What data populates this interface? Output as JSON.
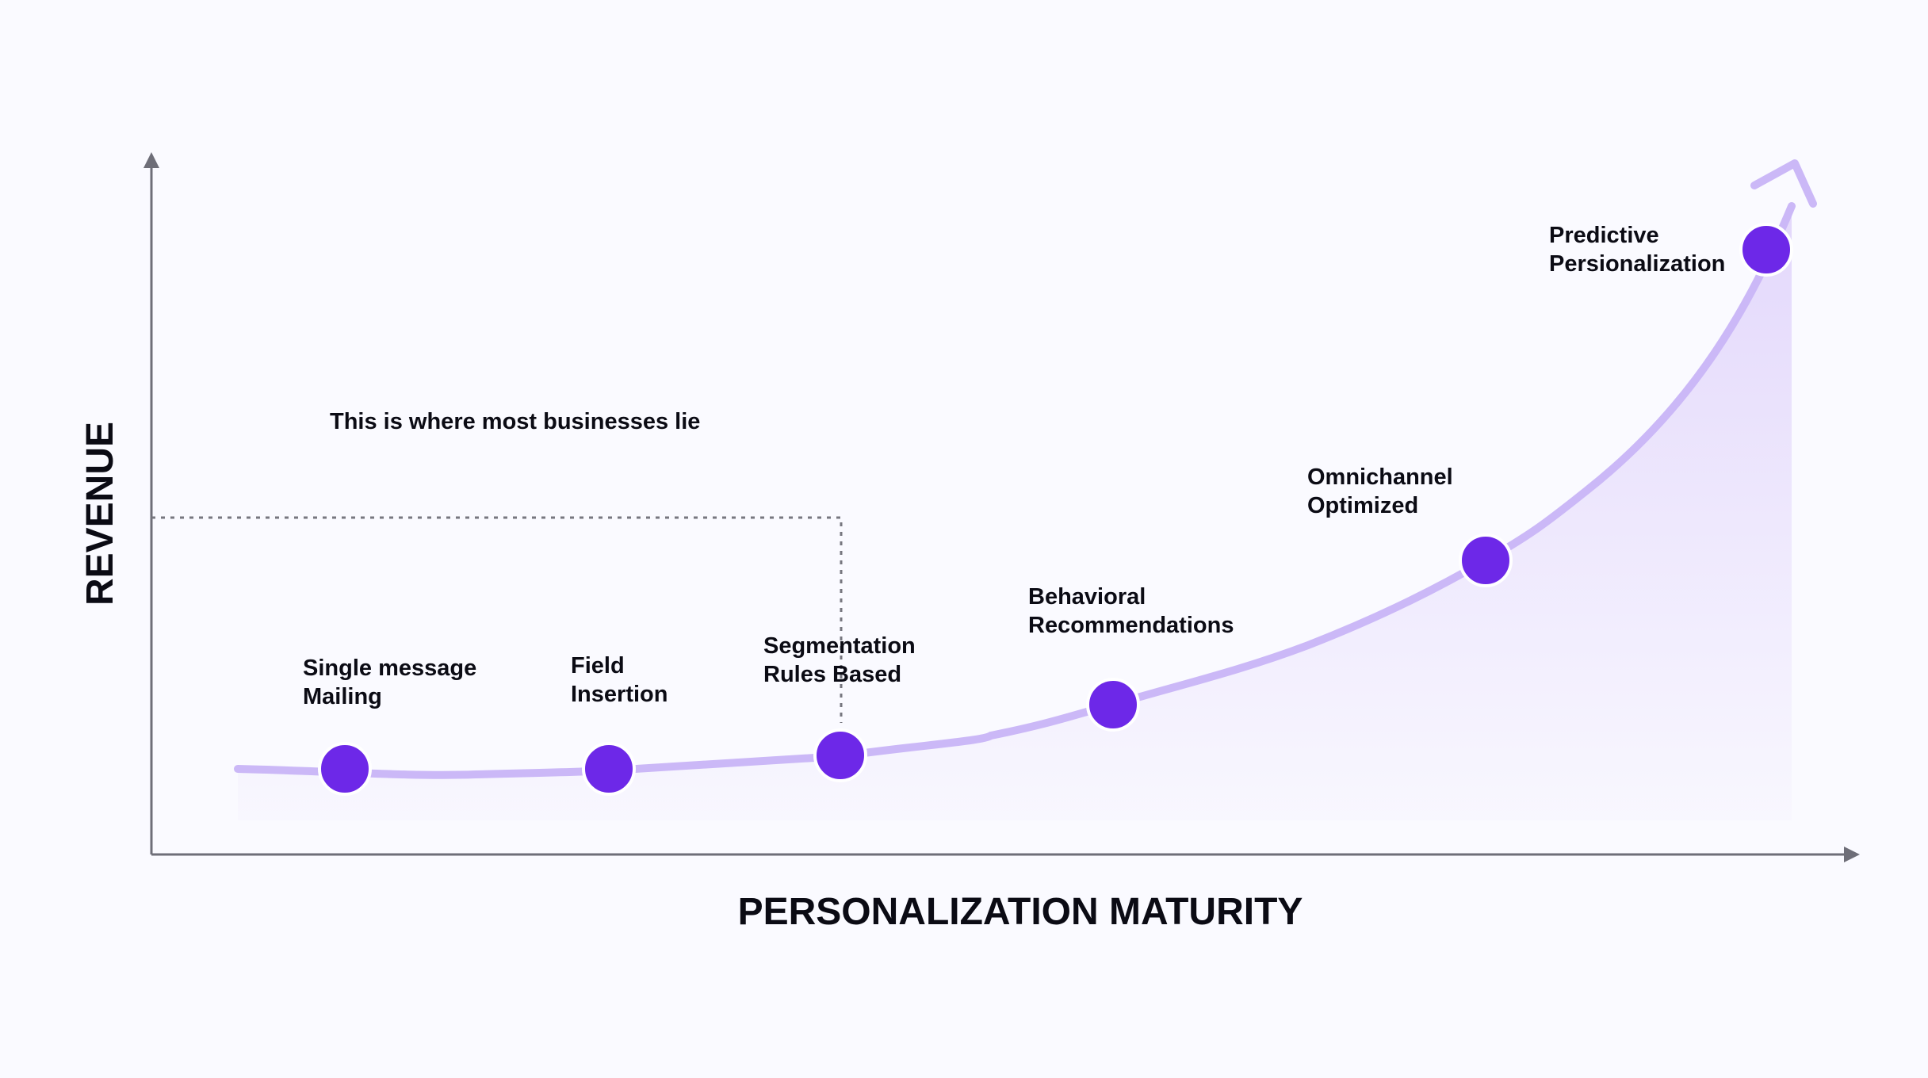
{
  "chart_data": {
    "type": "line",
    "x_axis_label": "PERSONALIZATION MATURITY",
    "y_axis_label": "REVENUE",
    "annotation": "This is where most businesses lie",
    "stages": [
      {
        "line1": "Single message",
        "line2": "Mailing"
      },
      {
        "line1": "Field",
        "line2": "Insertion"
      },
      {
        "line1": "Segmentation",
        "line2": "Rules Based"
      },
      {
        "line1": "Behavioral",
        "line2": "Recommendations"
      },
      {
        "line1": "Omnichannel",
        "line2": "Optimized"
      },
      {
        "line1": "Predictive",
        "line2": "Persionalization"
      }
    ]
  },
  "colors": {
    "background": "#fafaff",
    "axis": "#6e6e78",
    "curve": "#cbb8f7",
    "area_fill": "#e6dcfb",
    "marker": "#6d28e8",
    "marker_stroke": "#ffffff",
    "text": "#0b0b14",
    "dotted_guide": "#77777f"
  }
}
